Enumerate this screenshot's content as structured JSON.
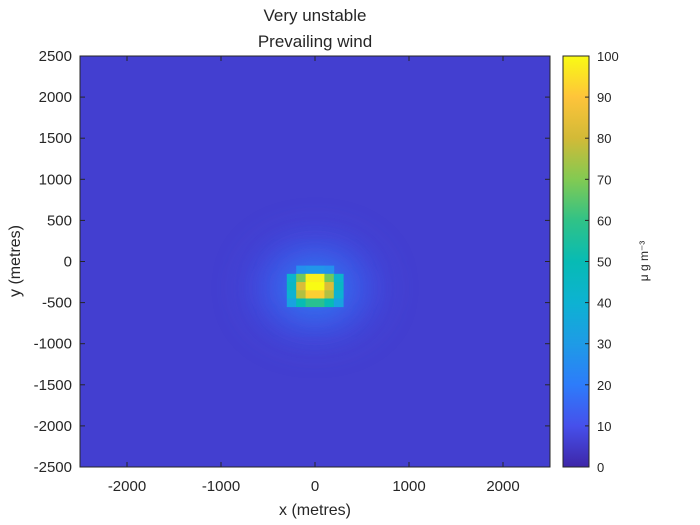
{
  "chart_data": {
    "type": "heatmap",
    "title": "Very unstable",
    "subtitle": "Prevailing wind",
    "xlabel": "x (metres)",
    "ylabel": "y (metres)",
    "xlim": [
      -2500,
      2500
    ],
    "ylim": [
      -2500,
      2500
    ],
    "x_ticks": [
      -2000,
      -1000,
      0,
      1000,
      2000
    ],
    "y_ticks": [
      2500,
      2000,
      1500,
      1000,
      500,
      0,
      -500,
      -1000,
      -1500,
      -2000,
      -2500
    ],
    "grid": false,
    "cell_size": 100,
    "colormap": "parula",
    "background_value": 6,
    "colorbar": {
      "label": "μ g m⁻³",
      "range": [
        0,
        100
      ],
      "ticks": [
        100,
        90,
        80,
        70,
        60,
        50,
        40,
        30,
        20,
        10,
        0
      ]
    },
    "cells": [
      {
        "x": -150,
        "y": -100,
        "v": 26
      },
      {
        "x": -50,
        "y": -100,
        "v": 28
      },
      {
        "x": 50,
        "y": -100,
        "v": 28
      },
      {
        "x": 150,
        "y": -100,
        "v": 26
      },
      {
        "x": -250,
        "y": -200,
        "v": 42
      },
      {
        "x": -150,
        "y": -200,
        "v": 68
      },
      {
        "x": -50,
        "y": -200,
        "v": 98
      },
      {
        "x": 50,
        "y": -200,
        "v": 98
      },
      {
        "x": 150,
        "y": -200,
        "v": 68
      },
      {
        "x": 250,
        "y": -200,
        "v": 42
      },
      {
        "x": -250,
        "y": -300,
        "v": 45
      },
      {
        "x": -150,
        "y": -300,
        "v": 82
      },
      {
        "x": -50,
        "y": -300,
        "v": 100
      },
      {
        "x": 50,
        "y": -300,
        "v": 100
      },
      {
        "x": 150,
        "y": -300,
        "v": 82
      },
      {
        "x": 250,
        "y": -300,
        "v": 45
      },
      {
        "x": -250,
        "y": -400,
        "v": 40
      },
      {
        "x": -150,
        "y": -400,
        "v": 76
      },
      {
        "x": -50,
        "y": -400,
        "v": 92
      },
      {
        "x": 50,
        "y": -400,
        "v": 92
      },
      {
        "x": 150,
        "y": -400,
        "v": 76
      },
      {
        "x": 250,
        "y": -400,
        "v": 40
      },
      {
        "x": -250,
        "y": -500,
        "v": 33
      },
      {
        "x": -150,
        "y": -500,
        "v": 50
      },
      {
        "x": -50,
        "y": -500,
        "v": 58
      },
      {
        "x": 50,
        "y": -500,
        "v": 58
      },
      {
        "x": 150,
        "y": -500,
        "v": 50
      },
      {
        "x": 250,
        "y": -500,
        "v": 33
      }
    ]
  }
}
